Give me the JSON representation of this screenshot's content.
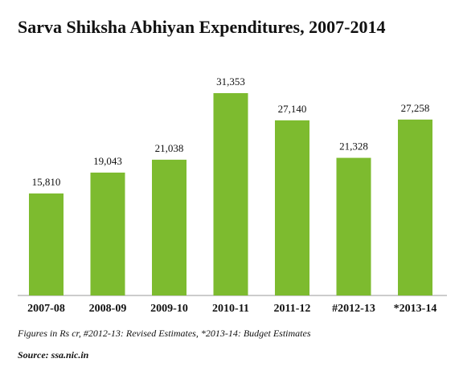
{
  "chart_data": {
    "type": "bar",
    "title": "Sarva Shiksha Abhiyan Expenditures, 2007-2014",
    "categories": [
      "2007-08",
      "2008-09",
      "2009-10",
      "2010-11",
      "2011-12",
      "#2012-13",
      "*2013-14"
    ],
    "values": [
      15810,
      19043,
      21038,
      31353,
      27140,
      21328,
      27258
    ],
    "value_labels": [
      "15,810",
      "19,043",
      "21,038",
      "31,353",
      "27,140",
      "21,328",
      "27,258"
    ],
    "color": "#7dbb2f",
    "note": "Figures in Rs cr, #2012-13: Revised Estimates, *2013-14: Budget Estimates",
    "source": "Source: ssa.nic.in"
  }
}
